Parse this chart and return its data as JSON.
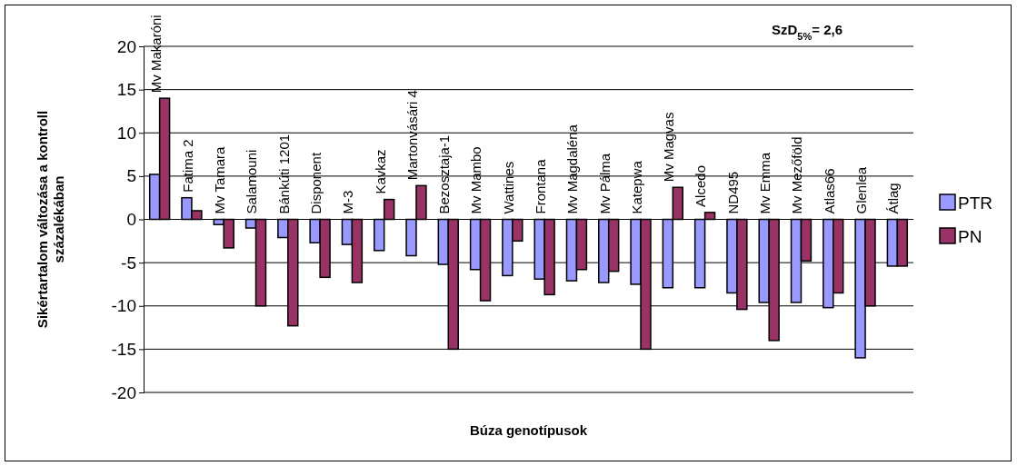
{
  "chart_data": {
    "type": "bar",
    "xlabel": "Búza genotípusok",
    "ylabel": "Sikértartalom változása a kontroll százalékában",
    "annotations": [
      "SzD$_{5%}$= 2,6"
    ],
    "categories": [
      "Mv Makaróni",
      "Fatima 2",
      "Mv Tamara",
      "Salamouni",
      "Bánkúti 1201",
      "Disponent",
      "M-3",
      "Kavkaz",
      "Martonvásári 4",
      "Bezosztaja-1",
      "Mv Mambo",
      "Wattines",
      "Frontana",
      "Mv Magdaléna",
      "Mv Pálma",
      "Katepwa",
      "Mv Magvas",
      "Alcedo",
      "ND495",
      "Mv Emma",
      "Mv Mezőföld",
      "Atlas66",
      "Glenlea",
      "Átlag"
    ],
    "series": [
      {
        "name": "PTR",
        "color": "#9999ff",
        "values": [
          5.2,
          2.5,
          -0.6,
          -1.0,
          -2.1,
          -2.7,
          -2.9,
          -3.6,
          -4.2,
          -5.2,
          -5.8,
          -6.5,
          -6.9,
          -7.1,
          -7.3,
          -7.5,
          -7.9,
          -7.9,
          -8.5,
          -9.6,
          -9.6,
          -10.2,
          -16.0,
          -5.4
        ]
      },
      {
        "name": "PN",
        "color": "#993366",
        "values": [
          14.0,
          1.0,
          -3.3,
          -10.0,
          -12.3,
          -6.7,
          -7.3,
          2.3,
          3.9,
          -15.0,
          -9.4,
          -2.5,
          -8.7,
          -5.8,
          -6.0,
          -15.0,
          3.7,
          0.8,
          -10.4,
          -14.0,
          -4.8,
          -8.5,
          -10.0,
          -5.4
        ]
      }
    ],
    "ylim": [
      -20,
      20
    ],
    "yticks": [
      -20,
      -15,
      -10,
      -5,
      0,
      5,
      10,
      15,
      20
    ],
    "grid": "y",
    "legend": "right"
  }
}
